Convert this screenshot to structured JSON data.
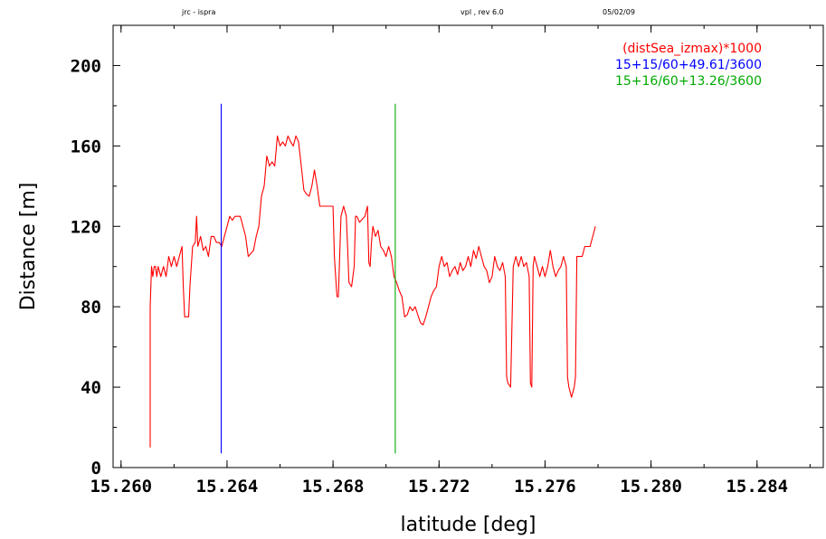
{
  "header": {
    "left": "jrc - ispra",
    "center": "vpl , rev 6.0",
    "right": "05/02/09"
  },
  "chart_data": {
    "type": "line",
    "xlabel": "latitude [deg]",
    "ylabel": "Distance [m]",
    "xlim": [
      15.2597,
      15.2865
    ],
    "ylim": [
      0,
      220
    ],
    "x_ticks": [
      {
        "value": 15.26,
        "label": "15.260"
      },
      {
        "value": 15.264,
        "label": "15.264"
      },
      {
        "value": 15.268,
        "label": "15.268"
      },
      {
        "value": 15.272,
        "label": "15.272"
      },
      {
        "value": 15.276,
        "label": "15.276"
      },
      {
        "value": 15.28,
        "label": "15.280"
      },
      {
        "value": 15.284,
        "label": "15.284"
      }
    ],
    "y_ticks": [
      {
        "value": 0,
        "label": "0"
      },
      {
        "value": 40,
        "label": "40"
      },
      {
        "value": 80,
        "label": "80"
      },
      {
        "value": 120,
        "label": "120"
      },
      {
        "value": 160,
        "label": "160"
      },
      {
        "value": 200,
        "label": "200"
      }
    ],
    "grid": false,
    "legend_position": "top-right",
    "series": [
      {
        "name": "(distSea_izmax)*1000",
        "color": "#ff0000",
        "points": [
          [
            15.2611,
            10
          ],
          [
            15.2611,
            80
          ],
          [
            15.26115,
            100
          ],
          [
            15.2612,
            95
          ],
          [
            15.26125,
            100
          ],
          [
            15.2613,
            100
          ],
          [
            15.26135,
            95
          ],
          [
            15.2614,
            100
          ],
          [
            15.2615,
            95
          ],
          [
            15.2616,
            100
          ],
          [
            15.2617,
            95
          ],
          [
            15.2618,
            105
          ],
          [
            15.2619,
            100
          ],
          [
            15.262,
            105
          ],
          [
            15.2621,
            100
          ],
          [
            15.2622,
            105
          ],
          [
            15.2623,
            110
          ],
          [
            15.26235,
            90
          ],
          [
            15.2624,
            75
          ],
          [
            15.26255,
            75
          ],
          [
            15.2626,
            90
          ],
          [
            15.2627,
            110
          ],
          [
            15.2628,
            112
          ],
          [
            15.26285,
            125
          ],
          [
            15.2629,
            110
          ],
          [
            15.263,
            115
          ],
          [
            15.2631,
            108
          ],
          [
            15.2632,
            110
          ],
          [
            15.2633,
            105
          ],
          [
            15.2634,
            115
          ],
          [
            15.2635,
            115
          ],
          [
            15.2636,
            112
          ],
          [
            15.2637,
            112
          ],
          [
            15.2638,
            110
          ],
          [
            15.2639,
            115
          ],
          [
            15.264,
            120
          ],
          [
            15.2641,
            125
          ],
          [
            15.2642,
            123
          ],
          [
            15.2643,
            125
          ],
          [
            15.2645,
            125
          ],
          [
            15.2647,
            115
          ],
          [
            15.2648,
            105
          ],
          [
            15.265,
            108
          ],
          [
            15.2651,
            115
          ],
          [
            15.2652,
            120
          ],
          [
            15.2653,
            135
          ],
          [
            15.2654,
            140
          ],
          [
            15.2655,
            155
          ],
          [
            15.2656,
            150
          ],
          [
            15.2657,
            152
          ],
          [
            15.2658,
            150
          ],
          [
            15.2659,
            165
          ],
          [
            15.266,
            160
          ],
          [
            15.2661,
            162
          ],
          [
            15.2662,
            160
          ],
          [
            15.2663,
            165
          ],
          [
            15.2664,
            162
          ],
          [
            15.2665,
            160
          ],
          [
            15.2666,
            165
          ],
          [
            15.2667,
            162
          ],
          [
            15.2668,
            150
          ],
          [
            15.2669,
            138
          ],
          [
            15.267,
            136
          ],
          [
            15.2671,
            135
          ],
          [
            15.2672,
            140
          ],
          [
            15.2673,
            148
          ],
          [
            15.2674,
            140
          ],
          [
            15.2675,
            130
          ],
          [
            15.2677,
            130
          ],
          [
            15.2679,
            130
          ],
          [
            15.268,
            130
          ],
          [
            15.26805,
            105
          ],
          [
            15.2681,
            95
          ],
          [
            15.26815,
            85
          ],
          [
            15.2682,
            85
          ],
          [
            15.2683,
            125
          ],
          [
            15.2684,
            130
          ],
          [
            15.2685,
            125
          ],
          [
            15.26855,
            110
          ],
          [
            15.2686,
            92
          ],
          [
            15.2687,
            90
          ],
          [
            15.2688,
            100
          ],
          [
            15.26885,
            125
          ],
          [
            15.2689,
            125
          ],
          [
            15.269,
            122
          ],
          [
            15.2692,
            125
          ],
          [
            15.2693,
            130
          ],
          [
            15.26935,
            102
          ],
          [
            15.2694,
            100
          ],
          [
            15.26945,
            112
          ],
          [
            15.2695,
            120
          ],
          [
            15.2696,
            115
          ],
          [
            15.2697,
            118
          ],
          [
            15.2698,
            110
          ],
          [
            15.2699,
            108
          ],
          [
            15.27,
            105
          ],
          [
            15.2701,
            110
          ],
          [
            15.2702,
            105
          ],
          [
            15.2703,
            95
          ],
          [
            15.2704,
            92
          ],
          [
            15.2705,
            88
          ],
          [
            15.2706,
            85
          ],
          [
            15.2707,
            75
          ],
          [
            15.2708,
            76
          ],
          [
            15.2709,
            80
          ],
          [
            15.271,
            78
          ],
          [
            15.2711,
            80
          ],
          [
            15.2712,
            76
          ],
          [
            15.2713,
            72
          ],
          [
            15.2714,
            71
          ],
          [
            15.2715,
            75
          ],
          [
            15.2716,
            80
          ],
          [
            15.2717,
            85
          ],
          [
            15.2718,
            88
          ],
          [
            15.2719,
            90
          ],
          [
            15.272,
            100
          ],
          [
            15.2721,
            105
          ],
          [
            15.2722,
            100
          ],
          [
            15.2723,
            102
          ],
          [
            15.2724,
            95
          ],
          [
            15.2725,
            98
          ],
          [
            15.2726,
            100
          ],
          [
            15.2727,
            96
          ],
          [
            15.2728,
            102
          ],
          [
            15.2729,
            98
          ],
          [
            15.273,
            100
          ],
          [
            15.2731,
            105
          ],
          [
            15.2732,
            100
          ],
          [
            15.2733,
            108
          ],
          [
            15.2734,
            104
          ],
          [
            15.2735,
            110
          ],
          [
            15.2736,
            105
          ],
          [
            15.2737,
            100
          ],
          [
            15.2738,
            98
          ],
          [
            15.2739,
            92
          ],
          [
            15.274,
            95
          ],
          [
            15.2741,
            105
          ],
          [
            15.2742,
            100
          ],
          [
            15.2743,
            98
          ],
          [
            15.2744,
            102
          ],
          [
            15.2745,
            95
          ],
          [
            15.27455,
            45
          ],
          [
            15.2746,
            42
          ],
          [
            15.2747,
            40
          ],
          [
            15.2748,
            100
          ],
          [
            15.2749,
            105
          ],
          [
            15.275,
            100
          ],
          [
            15.2751,
            105
          ],
          [
            15.2752,
            100
          ],
          [
            15.2753,
            102
          ],
          [
            15.2754,
            95
          ],
          [
            15.27545,
            42
          ],
          [
            15.2755,
            40
          ],
          [
            15.27555,
            100
          ],
          [
            15.2756,
            105
          ],
          [
            15.2757,
            100
          ],
          [
            15.2758,
            95
          ],
          [
            15.2759,
            100
          ],
          [
            15.276,
            95
          ],
          [
            15.2761,
            100
          ],
          [
            15.2762,
            108
          ],
          [
            15.2763,
            100
          ],
          [
            15.2764,
            95
          ],
          [
            15.2765,
            98
          ],
          [
            15.2766,
            100
          ],
          [
            15.2767,
            105
          ],
          [
            15.2768,
            100
          ],
          [
            15.27685,
            45
          ],
          [
            15.2769,
            40
          ],
          [
            15.277,
            35
          ],
          [
            15.2771,
            40
          ],
          [
            15.27715,
            45
          ],
          [
            15.2772,
            105
          ],
          [
            15.2774,
            105
          ],
          [
            15.2775,
            110
          ],
          [
            15.2777,
            110
          ],
          [
            15.2778,
            115
          ],
          [
            15.2779,
            120
          ]
        ]
      },
      {
        "name": "15+15/60+49.61/3600",
        "color": "#0000ff",
        "points": [
          [
            15.26378,
            7
          ],
          [
            15.26378,
            181
          ]
        ]
      },
      {
        "name": "15+16/60+13.26/3600",
        "color": "#00aa00",
        "points": [
          [
            15.27035,
            7
          ],
          [
            15.27035,
            181
          ]
        ]
      }
    ]
  }
}
